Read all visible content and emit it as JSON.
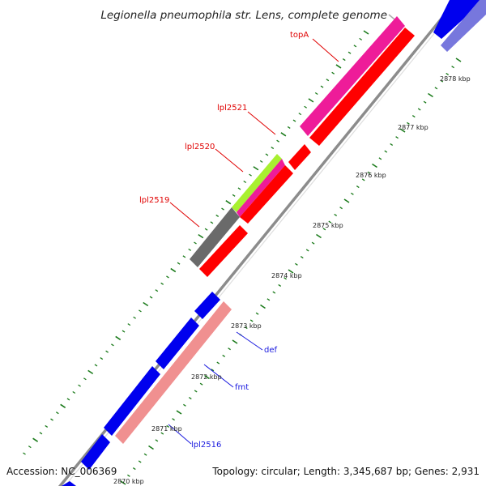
{
  "title": "Legionella pneumophila str. Lens, complete genome",
  "footer": {
    "accession": "Accession: NC_006369",
    "topology": "Topology: circular; Length: 3,345,687 bp; Genes: 2,931"
  },
  "colors": {
    "backbone": "#8c8c8c",
    "tick_dots": "#1a7a1a",
    "label_red": "#e00000",
    "label_blue": "#1a1adf",
    "gene_red": "#ff0000",
    "gene_magenta": "#ee1c99",
    "gene_gray": "#6a6a6a",
    "gene_green": "#a8f030",
    "gene_blue": "#0000ee",
    "gene_pink": "#f09090",
    "gene_lavender": "#7777dd"
  },
  "ticks": [
    "2878 kbp",
    "2877 kbp",
    "2876 kbp",
    "2875 kbp",
    "2874 kbp",
    "2873 kbp",
    "2872 kbp",
    "2871 kbp",
    "2870 kbp"
  ],
  "labels": {
    "topA": "topA",
    "lpl2521": "lpl2521",
    "lpl2520": "lpl2520",
    "lpl2519": "lpl2519",
    "def": "def",
    "fmt": "fmt",
    "lpl2516": "lpl2516"
  }
}
